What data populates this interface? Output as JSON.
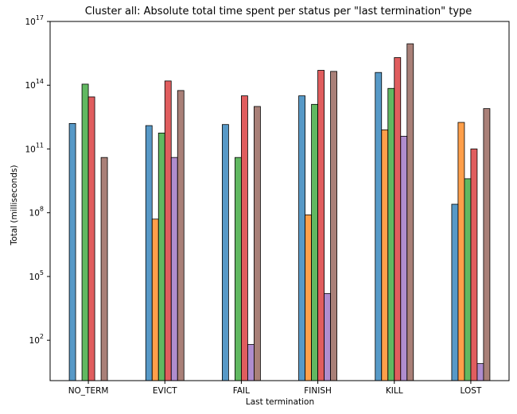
{
  "chart_data": {
    "type": "bar",
    "title": "Cluster all: Absolute total time spent per status per \"last termination\" type",
    "xlabel": "Last termination",
    "ylabel": "Total (milliseconds)",
    "yscale": "log",
    "ylim_log10": [
      0.1,
      17
    ],
    "y_ticks": [
      {
        "exp": "2",
        "value_log10": 2
      },
      {
        "exp": "5",
        "value_log10": 5
      },
      {
        "exp": "8",
        "value_log10": 8
      },
      {
        "exp": "11",
        "value_log10": 11
      },
      {
        "exp": "14",
        "value_log10": 14
      },
      {
        "exp": "17",
        "value_log10": 17
      }
    ],
    "categories": [
      "NO_TERM",
      "EVICT",
      "FAIL",
      "FINISH",
      "KILL",
      "LOST"
    ],
    "grid": false,
    "legend": "none",
    "series": [
      {
        "color": "#1f77b4",
        "values_log10": [
          12.2,
          12.1,
          12.15,
          13.5,
          14.6,
          8.4
        ]
      },
      {
        "color": "#ff7f0e",
        "values_log10": [
          null,
          7.7,
          null,
          7.9,
          11.9,
          12.25
        ]
      },
      {
        "color": "#2ca02c",
        "values_log10": [
          14.05,
          11.75,
          10.6,
          13.1,
          13.85,
          9.6
        ]
      },
      {
        "color": "#d62728",
        "values_log10": [
          13.45,
          14.2,
          13.5,
          14.7,
          15.3,
          11.0
        ]
      },
      {
        "color": "#9467bd",
        "values_log10": [
          null,
          10.6,
          1.8,
          4.2,
          11.6,
          0.9
        ]
      },
      {
        "color": "#8c564b",
        "values_log10": [
          10.6,
          13.75,
          13.0,
          14.65,
          15.95,
          12.9
        ]
      }
    ]
  }
}
